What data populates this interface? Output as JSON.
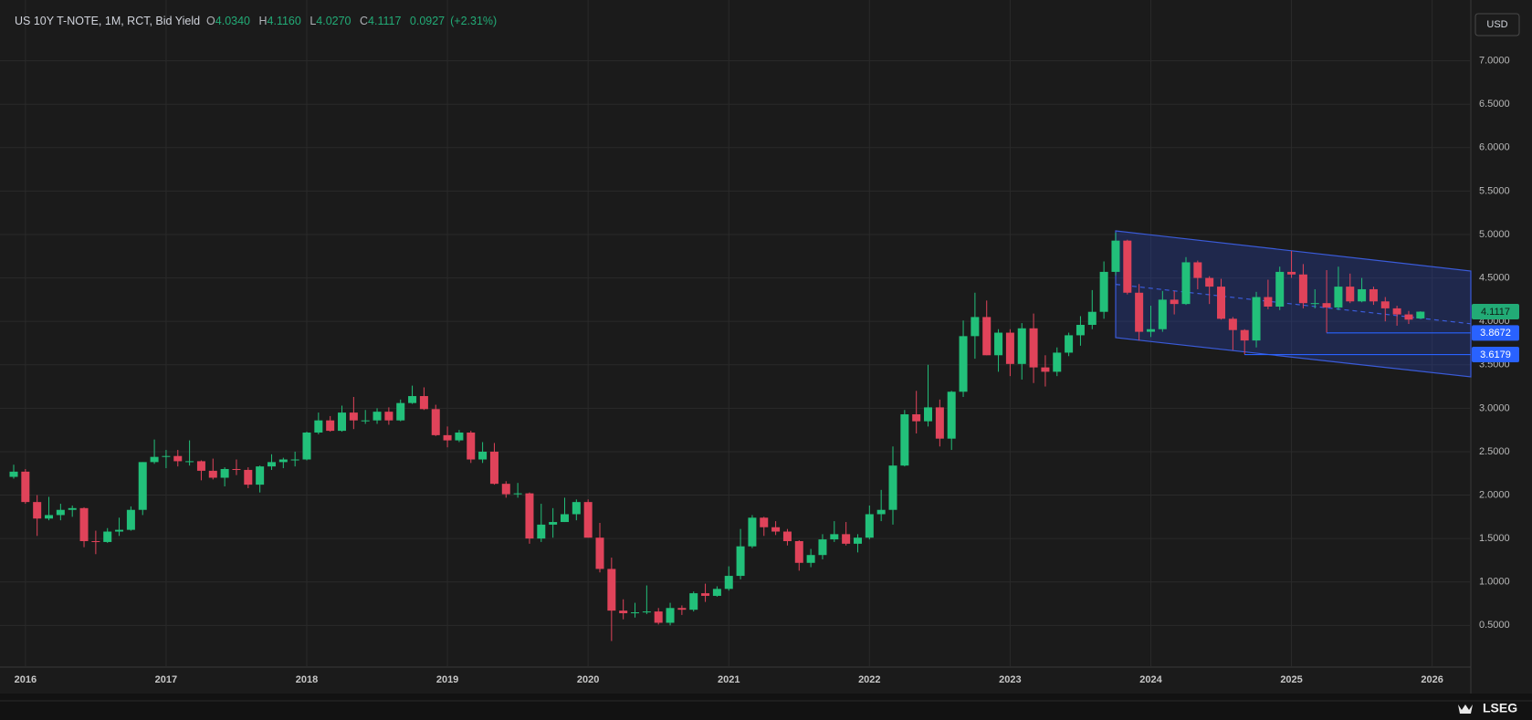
{
  "chart_data": {
    "type": "candlestick",
    "title": "US 10Y T-NOTE, 1M, RCT, Bid Yield",
    "readout": {
      "labels": [
        "O",
        "H",
        "L",
        "C"
      ],
      "values": [
        "4.0340",
        "4.1160",
        "4.0270",
        "4.1117"
      ],
      "change": "0.0927",
      "change_pct": "(+2.31%)"
    },
    "currency": "USD",
    "logo": "LSEG",
    "up_color": "#22c07a",
    "down_color": "#e0435a",
    "grid": true,
    "ylim": [
      0.02,
      7.7
    ],
    "yticks": [
      {
        "value": 0.5,
        "label": "0.5000"
      },
      {
        "value": 1,
        "label": "1.0000"
      },
      {
        "value": 1.5,
        "label": "1.5000"
      },
      {
        "value": 2,
        "label": "2.0000"
      },
      {
        "value": 2.5,
        "label": "2.5000"
      },
      {
        "value": 3,
        "label": "3.0000"
      },
      {
        "value": 3.5,
        "label": "3.5000"
      },
      {
        "value": 4,
        "label": "4.0000"
      },
      {
        "value": 4.5,
        "label": "4.5000"
      },
      {
        "value": 5,
        "label": "5.0000"
      },
      {
        "value": 5.5,
        "label": "5.5000"
      },
      {
        "value": 6,
        "label": "6.0000"
      },
      {
        "value": 6.5,
        "label": "6.5000"
      },
      {
        "value": 7,
        "label": "7.0000"
      }
    ],
    "price_tags": [
      {
        "value": 4.1117,
        "color": "#22ab76"
      },
      {
        "value": 3.8672,
        "color": "#2962ff"
      },
      {
        "value": 3.6179,
        "color": "#2962ff"
      }
    ],
    "categories": [
      null,
      "2016",
      null,
      null,
      null,
      null,
      null,
      null,
      null,
      null,
      null,
      null,
      null,
      "2017",
      null,
      null,
      null,
      null,
      null,
      null,
      null,
      null,
      null,
      null,
      null,
      "2018",
      null,
      null,
      null,
      null,
      null,
      null,
      null,
      null,
      null,
      null,
      null,
      "2019",
      null,
      null,
      null,
      null,
      null,
      null,
      null,
      null,
      null,
      null,
      null,
      "2020",
      null,
      null,
      null,
      null,
      null,
      null,
      null,
      null,
      null,
      null,
      null,
      "2021",
      null,
      null,
      null,
      null,
      null,
      null,
      null,
      null,
      null,
      null,
      null,
      "2022",
      null,
      null,
      null,
      null,
      null,
      null,
      null,
      null,
      null,
      null,
      null,
      "2023",
      null,
      null,
      null,
      null,
      null,
      null,
      null,
      null,
      null,
      null,
      null,
      "2024",
      null,
      null,
      null,
      null,
      null,
      null,
      null,
      null,
      null,
      null,
      null,
      "2025",
      null,
      null,
      null,
      null,
      null,
      null,
      null,
      null,
      null,
      null,
      null,
      "2026"
    ],
    "open": [
      2.21,
      2.27,
      1.92,
      1.73,
      1.77,
      1.83,
      1.85,
      1.47,
      1.46,
      1.58,
      1.6,
      1.83,
      2.38,
      2.44,
      2.45,
      2.39,
      2.39,
      2.28,
      2.2,
      2.3,
      2.29,
      2.12,
      2.33,
      2.38,
      2.41,
      2.41,
      2.72,
      2.86,
      2.74,
      2.95,
      2.86,
      2.86,
      2.96,
      2.86,
      3.06,
      3.14,
      2.99,
      2.69,
      2.63,
      2.72,
      2.41,
      2.5,
      2.13,
      2.01,
      2.02,
      1.5,
      1.66,
      1.69,
      1.78,
      1.92,
      1.51,
      1.15,
      0.67,
      0.64,
      0.65,
      0.66,
      0.53,
      0.7,
      0.68,
      0.87,
      0.84,
      0.92,
      1.07,
      1.41,
      1.74,
      1.63,
      1.58,
      1.47,
      1.22,
      1.31,
      1.49,
      1.55,
      1.44,
      1.51,
      1.78,
      1.83,
      2.34,
      2.93,
      2.85,
      3.01,
      2.65,
      3.19,
      3.83,
      4.05,
      3.61,
      3.87,
      3.51,
      3.92,
      3.47,
      3.42,
      3.64,
      3.84,
      3.96,
      4.11,
      4.57,
      4.93,
      4.33,
      3.88,
      3.91,
      4.25,
      4.2,
      4.68,
      4.5,
      4.4,
      4.03,
      3.9,
      3.78,
      4.28,
      4.17,
      4.57,
      4.54,
      4.21,
      4.21,
      4.16,
      4.4,
      4.23,
      4.37,
      4.23,
      4.15,
      4.08,
      4.034,
      null
    ],
    "high": [
      2.35,
      2.3,
      2.0,
      1.98,
      1.9,
      1.88,
      1.86,
      1.59,
      1.62,
      1.74,
      1.87,
      2.38,
      2.64,
      2.52,
      2.52,
      2.63,
      2.4,
      2.42,
      2.32,
      2.41,
      2.32,
      2.34,
      2.47,
      2.43,
      2.5,
      2.73,
      2.95,
      2.91,
      3.03,
      3.13,
      2.98,
      3.0,
      3.01,
      3.1,
      3.26,
      3.24,
      3.04,
      2.79,
      2.75,
      2.74,
      2.61,
      2.6,
      2.16,
      2.14,
      2.03,
      1.9,
      1.85,
      1.97,
      1.95,
      1.95,
      1.68,
      1.28,
      0.8,
      0.76,
      0.96,
      0.7,
      0.76,
      0.73,
      0.89,
      0.98,
      0.95,
      1.18,
      1.61,
      1.77,
      1.75,
      1.7,
      1.61,
      1.48,
      1.38,
      1.55,
      1.7,
      1.69,
      1.55,
      1.88,
      2.06,
      2.56,
      2.98,
      3.2,
      3.5,
      3.1,
      3.2,
      4.01,
      4.33,
      4.24,
      3.91,
      3.91,
      3.98,
      4.09,
      3.61,
      3.7,
      3.87,
      4.06,
      4.36,
      4.69,
      5.02,
      4.94,
      4.43,
      4.18,
      4.35,
      4.35,
      4.74,
      4.7,
      4.52,
      4.49,
      4.05,
      3.91,
      4.34,
      4.48,
      4.63,
      4.81,
      4.66,
      4.37,
      4.59,
      4.63,
      4.55,
      4.5,
      4.4,
      4.28,
      4.18,
      4.12,
      4.116,
      null
    ],
    "low": [
      2.19,
      1.9,
      1.53,
      1.71,
      1.71,
      1.75,
      1.4,
      1.32,
      1.45,
      1.53,
      1.59,
      1.77,
      2.36,
      2.31,
      2.33,
      2.34,
      2.17,
      2.18,
      2.1,
      2.23,
      2.08,
      2.03,
      2.29,
      2.31,
      2.33,
      2.4,
      2.7,
      2.73,
      2.73,
      2.76,
      2.82,
      2.82,
      2.81,
      2.85,
      3.05,
      2.98,
      2.68,
      2.55,
      2.61,
      2.37,
      2.37,
      2.12,
      1.97,
      1.97,
      1.44,
      1.46,
      1.51,
      1.69,
      1.71,
      1.51,
      1.11,
      0.32,
      0.57,
      0.59,
      0.63,
      0.51,
      0.5,
      0.62,
      0.66,
      0.77,
      0.83,
      0.9,
      1.03,
      1.39,
      1.53,
      1.54,
      1.42,
      1.13,
      1.17,
      1.26,
      1.46,
      1.42,
      1.34,
      1.49,
      1.7,
      1.66,
      2.33,
      2.71,
      2.79,
      2.56,
      2.52,
      3.13,
      3.57,
      3.61,
      3.42,
      3.37,
      3.33,
      3.29,
      3.25,
      3.37,
      3.6,
      3.72,
      3.91,
      4.03,
      4.53,
      4.31,
      3.78,
      3.82,
      3.88,
      4.08,
      4.19,
      4.37,
      4.2,
      4.02,
      3.67,
      3.62,
      3.7,
      4.14,
      4.13,
      4.5,
      4.15,
      4.15,
      3.87,
      4.13,
      4.21,
      4.22,
      4.19,
      4.0,
      3.95,
      3.97,
      4.027,
      null
    ],
    "close": [
      2.27,
      1.92,
      1.73,
      1.77,
      1.83,
      1.85,
      1.47,
      1.46,
      1.58,
      1.6,
      1.83,
      2.38,
      2.44,
      2.45,
      2.39,
      2.39,
      2.28,
      2.2,
      2.3,
      2.29,
      2.12,
      2.33,
      2.38,
      2.41,
      2.41,
      2.72,
      2.86,
      2.74,
      2.95,
      2.86,
      2.86,
      2.96,
      2.86,
      3.06,
      3.14,
      2.99,
      2.69,
      2.63,
      2.72,
      2.41,
      2.5,
      2.13,
      2.01,
      2.02,
      1.5,
      1.66,
      1.69,
      1.78,
      1.92,
      1.51,
      1.15,
      0.67,
      0.64,
      0.65,
      0.66,
      0.53,
      0.7,
      0.68,
      0.87,
      0.84,
      0.92,
      1.07,
      1.41,
      1.74,
      1.63,
      1.58,
      1.47,
      1.22,
      1.31,
      1.49,
      1.55,
      1.44,
      1.51,
      1.78,
      1.83,
      2.34,
      2.93,
      2.85,
      3.01,
      2.65,
      3.19,
      3.83,
      4.05,
      3.61,
      3.87,
      3.51,
      3.92,
      3.47,
      3.42,
      3.64,
      3.84,
      3.96,
      4.11,
      4.57,
      4.93,
      4.33,
      3.88,
      3.91,
      4.25,
      4.2,
      4.68,
      4.5,
      4.4,
      4.03,
      3.9,
      3.78,
      4.28,
      4.17,
      4.57,
      4.54,
      4.21,
      4.21,
      4.16,
      4.4,
      4.23,
      4.37,
      4.23,
      4.15,
      4.08,
      4.02,
      4.1117,
      null
    ]
  }
}
